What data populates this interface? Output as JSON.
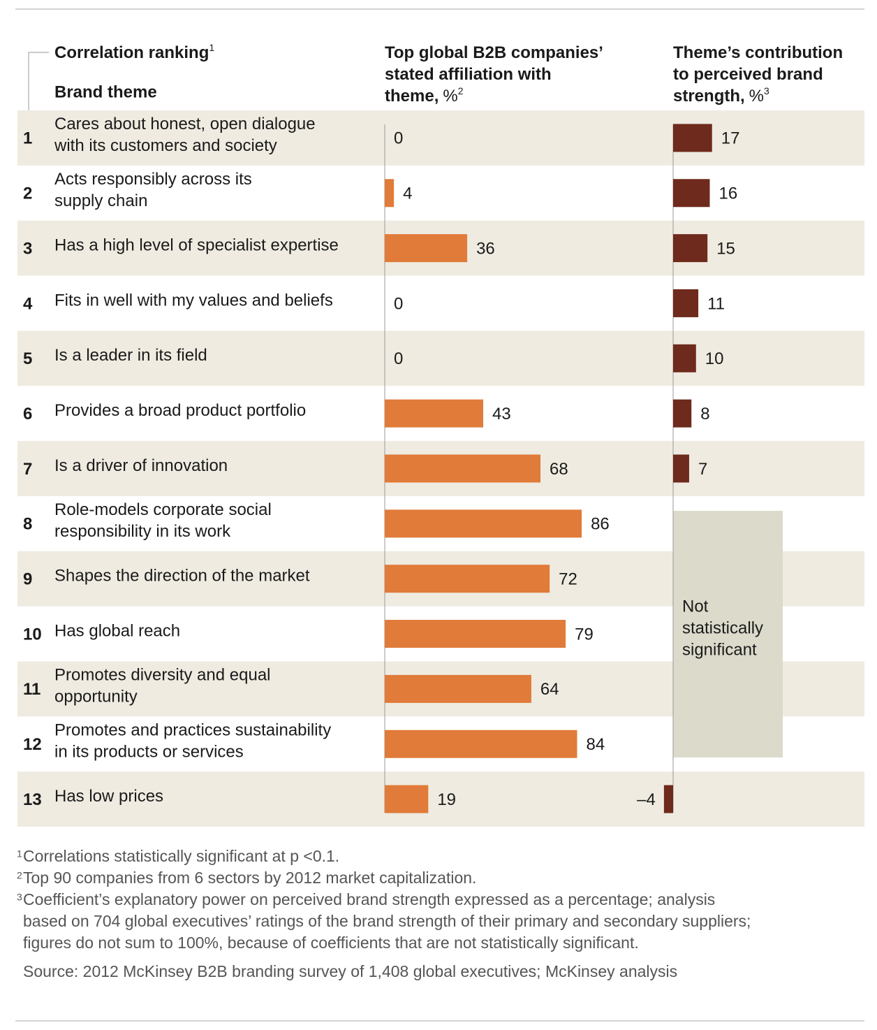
{
  "headers": {
    "ranking": "Correlation ranking",
    "ranking_note": "1",
    "theme": "Brand theme"
  },
  "ranks": [
    1,
    2,
    3,
    4,
    5,
    6,
    7,
    8,
    9,
    10,
    11,
    12,
    13
  ],
  "chart_data": [
    {
      "type": "bar",
      "orientation": "horizontal",
      "title": [
        "Top global B2B companies’",
        "stated affiliation with",
        "theme,"
      ],
      "unit": "%",
      "title_note": "2",
      "categories": [
        [
          "Cares about honest, open dialogue",
          "with its customers and society"
        ],
        [
          "Acts responsibly across its",
          "supply chain"
        ],
        [
          "Has a high level of specialist expertise"
        ],
        [
          "Fits in well with my values and beliefs"
        ],
        [
          "Is a leader in its field"
        ],
        [
          "Provides a broad product portfolio"
        ],
        [
          "Is a driver of innovation"
        ],
        [
          "Role-models corporate social",
          "responsibility in its work"
        ],
        [
          "Shapes the direction of the market"
        ],
        [
          "Has global reach"
        ],
        [
          "Promotes diversity and equal",
          "opportunity"
        ],
        [
          "Promotes and practices sustainability",
          "in its products or services"
        ],
        [
          "Has low prices"
        ]
      ],
      "values": [
        0,
        4,
        36,
        0,
        0,
        43,
        68,
        86,
        72,
        79,
        64,
        84,
        19
      ],
      "color": "#e07b39"
    },
    {
      "type": "bar",
      "orientation": "horizontal",
      "title": [
        "Theme’s contribution",
        "to perceived brand",
        "strength,"
      ],
      "unit": "%",
      "title_note": "3",
      "values": [
        17,
        16,
        15,
        11,
        10,
        8,
        7,
        null,
        null,
        null,
        null,
        null,
        -4
      ],
      "value_labels": [
        "17",
        "16",
        "15",
        "11",
        "10",
        "8",
        "7",
        null,
        null,
        null,
        null,
        null,
        "–4"
      ],
      "color": "#6e2a1c",
      "annotation": [
        "Not",
        "statistically",
        "significant"
      ]
    }
  ],
  "footnotes": [
    {
      "mark": "1",
      "lines": [
        "Correlations statistically significant at p <0.1."
      ]
    },
    {
      "mark": "2",
      "lines": [
        "Top 90 companies from 6 sectors by 2012 market capitalization."
      ]
    },
    {
      "mark": "3",
      "lines": [
        "Coefficient’s explanatory power on perceived brand strength expressed as a percentage; analysis",
        "based on 704 global executives’ ratings of the brand strength of their primary and secondary suppliers;",
        "figures do not sum to 100%, because of coefficients that are not statistically significant."
      ]
    }
  ],
  "source": "Source: 2012 McKinsey B2B branding survey of 1,408 global executives; McKinsey analysis"
}
